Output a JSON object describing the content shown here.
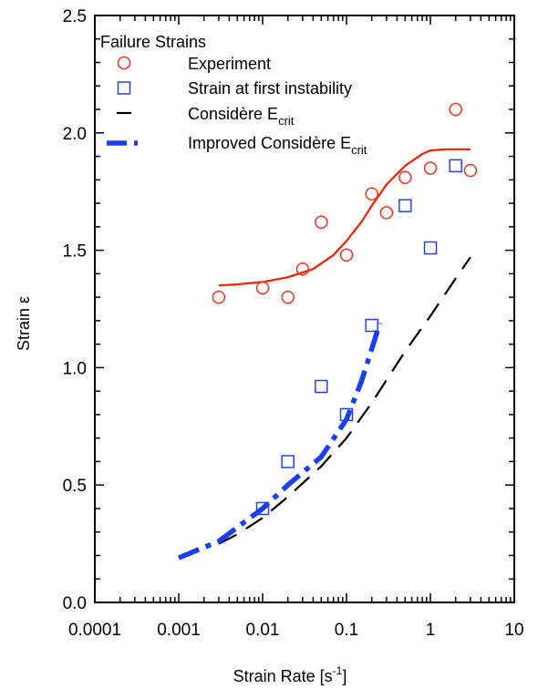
{
  "chart_data": {
    "type": "scatter",
    "xscale": "log",
    "xlim": [
      0.0001,
      10
    ],
    "ylim": [
      0.0,
      2.5
    ],
    "xlabel": "Strain Rate [s",
    "xlabel_sup": "-1",
    "xlabel_close": "]",
    "ylabel": "Strain ε",
    "x_tick_labels": [
      "0.0001",
      "0.001",
      "0.01",
      "0.1",
      "1",
      "10"
    ],
    "x_tick_values": [
      0.0001,
      0.001,
      0.01,
      0.1,
      1,
      10
    ],
    "y_tick_labels": [
      "0.0",
      "0.5",
      "1.0",
      "1.5",
      "2.0",
      "2.5"
    ],
    "y_tick_values": [
      0.0,
      0.5,
      1.0,
      1.5,
      2.0,
      2.5
    ],
    "grid": false,
    "legend": {
      "placement": "top-left",
      "title": "Failure Strains",
      "entries": [
        {
          "label": "Experiment"
        },
        {
          "label": "Strain at first instability"
        },
        {
          "label": "Considère E",
          "sub": "crit"
        },
        {
          "label": "Improved Considère E",
          "sub": "crit"
        }
      ]
    },
    "series": [
      {
        "name": "Experiment",
        "style": "circle",
        "color": "#ee3322",
        "x": [
          0.003,
          0.01,
          0.02,
          0.03,
          0.05,
          0.1,
          0.2,
          0.3,
          0.5,
          1,
          2,
          3
        ],
        "y": [
          1.3,
          1.34,
          1.3,
          1.42,
          1.62,
          1.48,
          1.74,
          1.66,
          1.81,
          1.85,
          2.1,
          1.84
        ]
      },
      {
        "name": "Experiment fit",
        "style": "solid-line",
        "color": "#ee2200",
        "x": [
          0.003,
          0.005,
          0.01,
          0.02,
          0.04,
          0.07,
          0.1,
          0.15,
          0.2,
          0.3,
          0.5,
          0.8,
          1,
          1.5,
          2,
          3
        ],
        "y": [
          1.35,
          1.355,
          1.365,
          1.385,
          1.42,
          1.48,
          1.54,
          1.62,
          1.69,
          1.78,
          1.86,
          1.91,
          1.925,
          1.93,
          1.93,
          1.93
        ]
      },
      {
        "name": "Strain at first instability",
        "style": "square",
        "color": "#2244ee",
        "x": [
          0.01,
          0.02,
          0.05,
          0.1,
          0.2,
          0.5,
          1,
          2
        ],
        "y": [
          0.4,
          0.6,
          0.92,
          0.8,
          1.18,
          1.69,
          1.51,
          1.86
        ]
      },
      {
        "name": "Considère Ecrit",
        "style": "dashed-line",
        "color": "#000000",
        "x": [
          0.003,
          0.005,
          0.01,
          0.02,
          0.05,
          0.1,
          0.2,
          0.5,
          1,
          2,
          3
        ],
        "y": [
          0.25,
          0.29,
          0.36,
          0.45,
          0.58,
          0.7,
          0.85,
          1.07,
          1.22,
          1.38,
          1.47
        ]
      },
      {
        "name": "Improved Considère Ecrit",
        "style": "thick-dashed-line",
        "color": "#1a3ff0",
        "x": [
          0.001,
          0.002,
          0.003,
          0.005,
          0.01,
          0.02,
          0.05,
          0.1,
          0.15,
          0.2,
          0.25
        ],
        "y": [
          0.19,
          0.235,
          0.26,
          0.32,
          0.4,
          0.5,
          0.62,
          0.78,
          0.94,
          1.08,
          1.19
        ]
      }
    ]
  }
}
